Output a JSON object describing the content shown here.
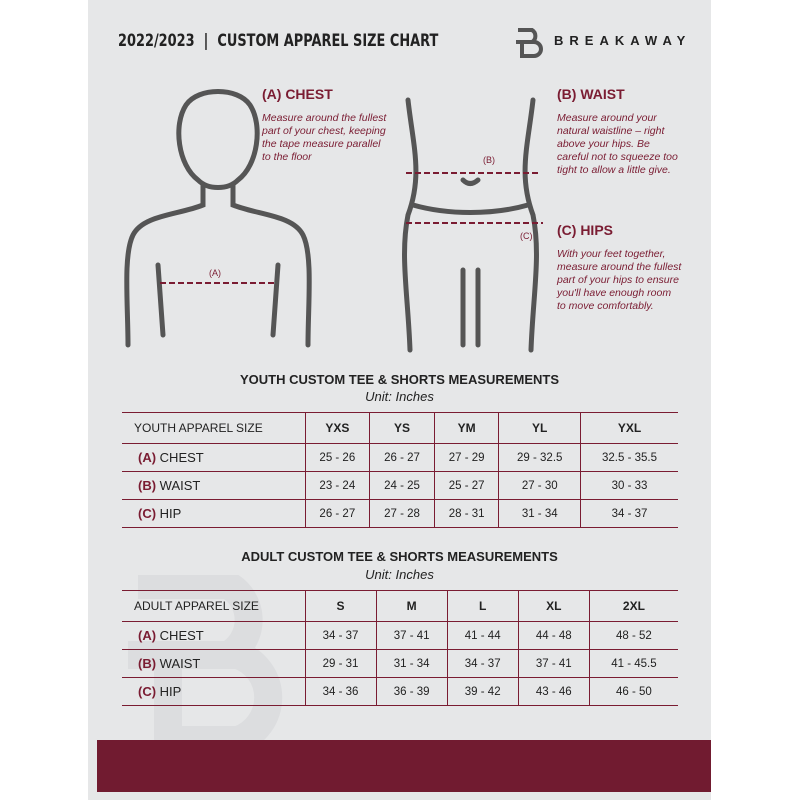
{
  "header": {
    "title": "2022/2023  |  CUSTOM APPAREL SIZE CHART",
    "brand": "BREAKAWAY",
    "logo_letter": "B"
  },
  "measures": {
    "chest": {
      "heading": "(A) CHEST",
      "text": "Measure around the fullest part of your chest, keeping the tape measure parallel to the floor",
      "marker": "(A)"
    },
    "waist": {
      "heading": "(B) WAIST",
      "text": "Measure around your natural waistline – right above your hips. Be careful not to squeeze too tight to allow a little give.",
      "marker": "(B)"
    },
    "hips": {
      "heading": "(C) HIPS",
      "text": "With your feet together, measure around the fullest part of your hips to ensure you'll have enough room to move comfortably.",
      "marker": "(C)"
    }
  },
  "youth": {
    "title": "YOUTH CUSTOM TEE & SHORTS MEASUREMENTS",
    "unit": "Unit: Inches",
    "header": [
      "YOUTH APPAREL SIZE",
      "YXS",
      "YS",
      "YM",
      "YL",
      "YXL"
    ],
    "rows": [
      {
        "letter": "(A)",
        "name": "CHEST",
        "values": [
          "25 - 26",
          "26 - 27",
          "27 - 29",
          "29 - 32.5",
          "32.5 - 35.5"
        ]
      },
      {
        "letter": "(B)",
        "name": "WAIST",
        "values": [
          "23 - 24",
          "24 - 25",
          "25 - 27",
          "27 - 30",
          "30 - 33"
        ]
      },
      {
        "letter": "(C)",
        "name": "HIP",
        "values": [
          "26 - 27",
          "27 - 28",
          "28 - 31",
          "31 - 34",
          "34 - 37"
        ]
      }
    ]
  },
  "adult": {
    "title": "ADULT CUSTOM TEE & SHORTS MEASUREMENTS",
    "unit": "Unit: Inches",
    "header": [
      "ADULT APPAREL SIZE",
      "S",
      "M",
      "L",
      "XL",
      "2XL"
    ],
    "rows": [
      {
        "letter": "(A)",
        "name": "CHEST",
        "values": [
          "34 - 37",
          "37 - 41",
          "41 - 44",
          "44 - 48",
          "48 - 52"
        ]
      },
      {
        "letter": "(B)",
        "name": "WAIST",
        "values": [
          "29 - 31",
          "31 - 34",
          "34 - 37",
          "37 - 41",
          "41 - 45.5"
        ]
      },
      {
        "letter": "(C)",
        "name": "HIP",
        "values": [
          "34 - 36",
          "36 - 39",
          "39 - 42",
          "43 - 46",
          "46 - 50"
        ]
      }
    ]
  },
  "colors": {
    "accent": "#7a1c32",
    "background": "#e6e7e8",
    "footer": "#711b30"
  }
}
